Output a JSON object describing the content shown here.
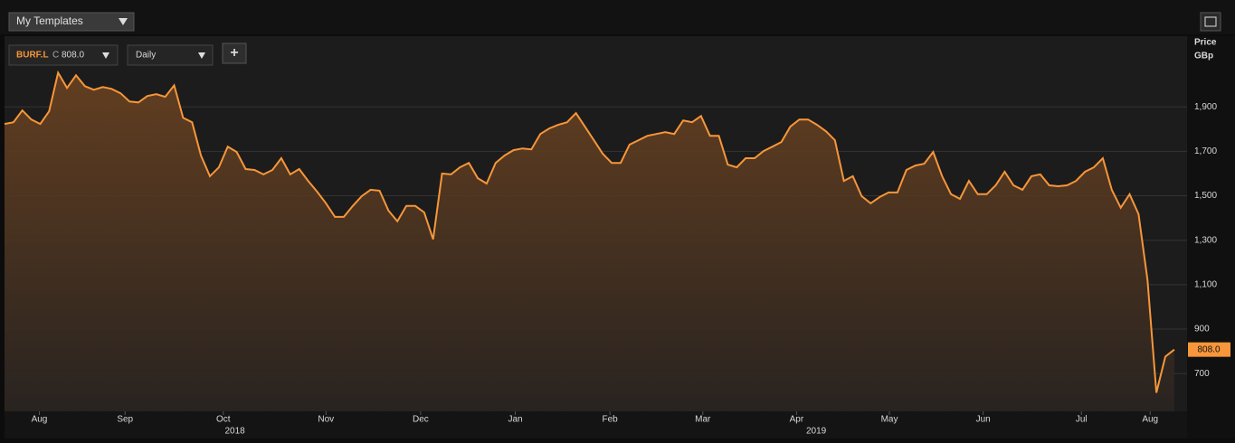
{
  "toolbar": {
    "templates": "My Templates"
  },
  "header": {
    "ticker": "BURF.L",
    "close_prefix": "C",
    "close": "808.0",
    "interval": "Daily",
    "add": "+"
  },
  "chart_data": {
    "type": "line",
    "axis_title": [
      "Price",
      "GBp"
    ],
    "color": "#f7963a",
    "grid": true,
    "values": [
      1823,
      1831,
      1884,
      1843,
      1823,
      1880,
      2054,
      1985,
      2042,
      1993,
      1977,
      1989,
      1981,
      1961,
      1924,
      1920,
      1949,
      1957,
      1945,
      1997,
      1851,
      1831,
      1681,
      1588,
      1628,
      1721,
      1697,
      1620,
      1616,
      1596,
      1616,
      1669,
      1596,
      1620,
      1567,
      1519,
      1466,
      1405,
      1405,
      1454,
      1498,
      1527,
      1523,
      1433,
      1385,
      1454,
      1454,
      1425,
      1304,
      1600,
      1596,
      1628,
      1648,
      1579,
      1555,
      1648,
      1681,
      1705,
      1713,
      1709,
      1778,
      1803,
      1819,
      1831,
      1872,
      1811,
      1750,
      1689,
      1648,
      1648,
      1730,
      1750,
      1770,
      1778,
      1786,
      1778,
      1839,
      1831,
      1859,
      1770,
      1770,
      1640,
      1628,
      1669,
      1669,
      1701,
      1721,
      1742,
      1811,
      1843,
      1843,
      1819,
      1790,
      1750,
      1567,
      1588,
      1498,
      1466,
      1494,
      1515,
      1515,
      1616,
      1636,
      1644,
      1697,
      1588,
      1507,
      1486,
      1567,
      1507,
      1507,
      1547,
      1608,
      1547,
      1527,
      1588,
      1596,
      1547,
      1543,
      1547,
      1567,
      1608,
      1628,
      1669,
      1527,
      1446,
      1507,
      1417,
      1121,
      614,
      776,
      808
    ],
    "last_price": {
      "value": 808,
      "label": "808.0"
    },
    "xlim": [
      0,
      130
    ],
    "xticks": [
      {
        "value": 3.9,
        "label": "Aug"
      },
      {
        "value": 13.5,
        "label": "Sep"
      },
      {
        "value": 24.5,
        "label": "Oct"
      },
      {
        "value": 36,
        "label": "Nov"
      },
      {
        "value": 46.6,
        "label": "Dec"
      },
      {
        "value": 57.2,
        "label": "Jan"
      },
      {
        "value": 67.8,
        "label": "Feb"
      },
      {
        "value": 78.2,
        "label": "Mar"
      },
      {
        "value": 88.7,
        "label": "Apr"
      },
      {
        "value": 99.1,
        "label": "May"
      },
      {
        "value": 109.6,
        "label": "Jun"
      },
      {
        "value": 120.6,
        "label": "Jul"
      },
      {
        "value": 128.3,
        "label": "Aug"
      }
    ],
    "year_labels": [
      {
        "value": 25.8,
        "label": "2018"
      },
      {
        "value": 90.9,
        "label": "2019"
      }
    ],
    "ylim": [
      530,
      2210
    ],
    "yticks": [
      700,
      900,
      {
        "value": 1100,
        "label": "1,100"
      },
      {
        "value": 1300,
        "label": "1,300"
      },
      {
        "value": 1500,
        "label": "1,500"
      },
      {
        "value": 1700,
        "label": "1,700"
      },
      {
        "value": 1900,
        "label": "1,900"
      }
    ]
  }
}
